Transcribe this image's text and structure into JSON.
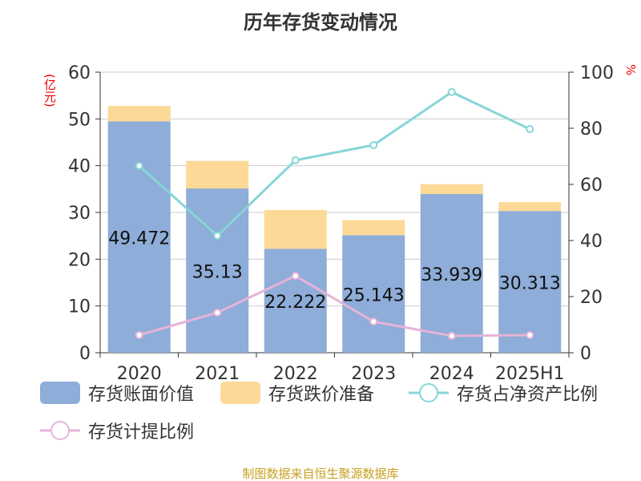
{
  "title": "历年存货变动情况",
  "unit_left": "(亿元)",
  "unit_right": "%",
  "footer": "制图数据来自恒生聚源数据库",
  "chart_data": {
    "type": "bar",
    "title": "历年存货变动情况",
    "categories": [
      "2020",
      "2021",
      "2022",
      "2023",
      "2024",
      "2025H1"
    ],
    "ylim": [
      0,
      60
    ],
    "yticks": [
      0,
      10,
      20,
      30,
      40,
      50,
      60
    ],
    "y2lim": [
      0,
      100
    ],
    "y2ticks": [
      0,
      20,
      40,
      60,
      80,
      100
    ],
    "series": [
      {
        "name": "存货账面价值",
        "type": "bar",
        "stack": "a",
        "axis": "left",
        "color": "#8eadd8",
        "values": [
          49.472,
          35.13,
          22.222,
          25.143,
          33.939,
          30.313
        ],
        "labels": [
          "49.472",
          "35.13",
          "22.222",
          "25.143",
          "33.939",
          "30.313"
        ]
      },
      {
        "name": "存货跌价准备",
        "type": "bar",
        "stack": "a",
        "axis": "left",
        "color": "#fdd998",
        "values": [
          3.3,
          5.9,
          8.3,
          3.2,
          2.1,
          1.9
        ]
      },
      {
        "name": "存货占净资产比例",
        "type": "line",
        "axis": "right",
        "color": "#86d5d8",
        "values": [
          66.6,
          41.7,
          68.6,
          74.0,
          92.9,
          79.7
        ]
      },
      {
        "name": "存货计提比例",
        "type": "line",
        "axis": "right",
        "color": "#e6b3d8",
        "values": [
          6.3,
          14.3,
          27.4,
          11.1,
          6.0,
          6.3
        ]
      }
    ],
    "legend": "bottom",
    "grid": true
  }
}
